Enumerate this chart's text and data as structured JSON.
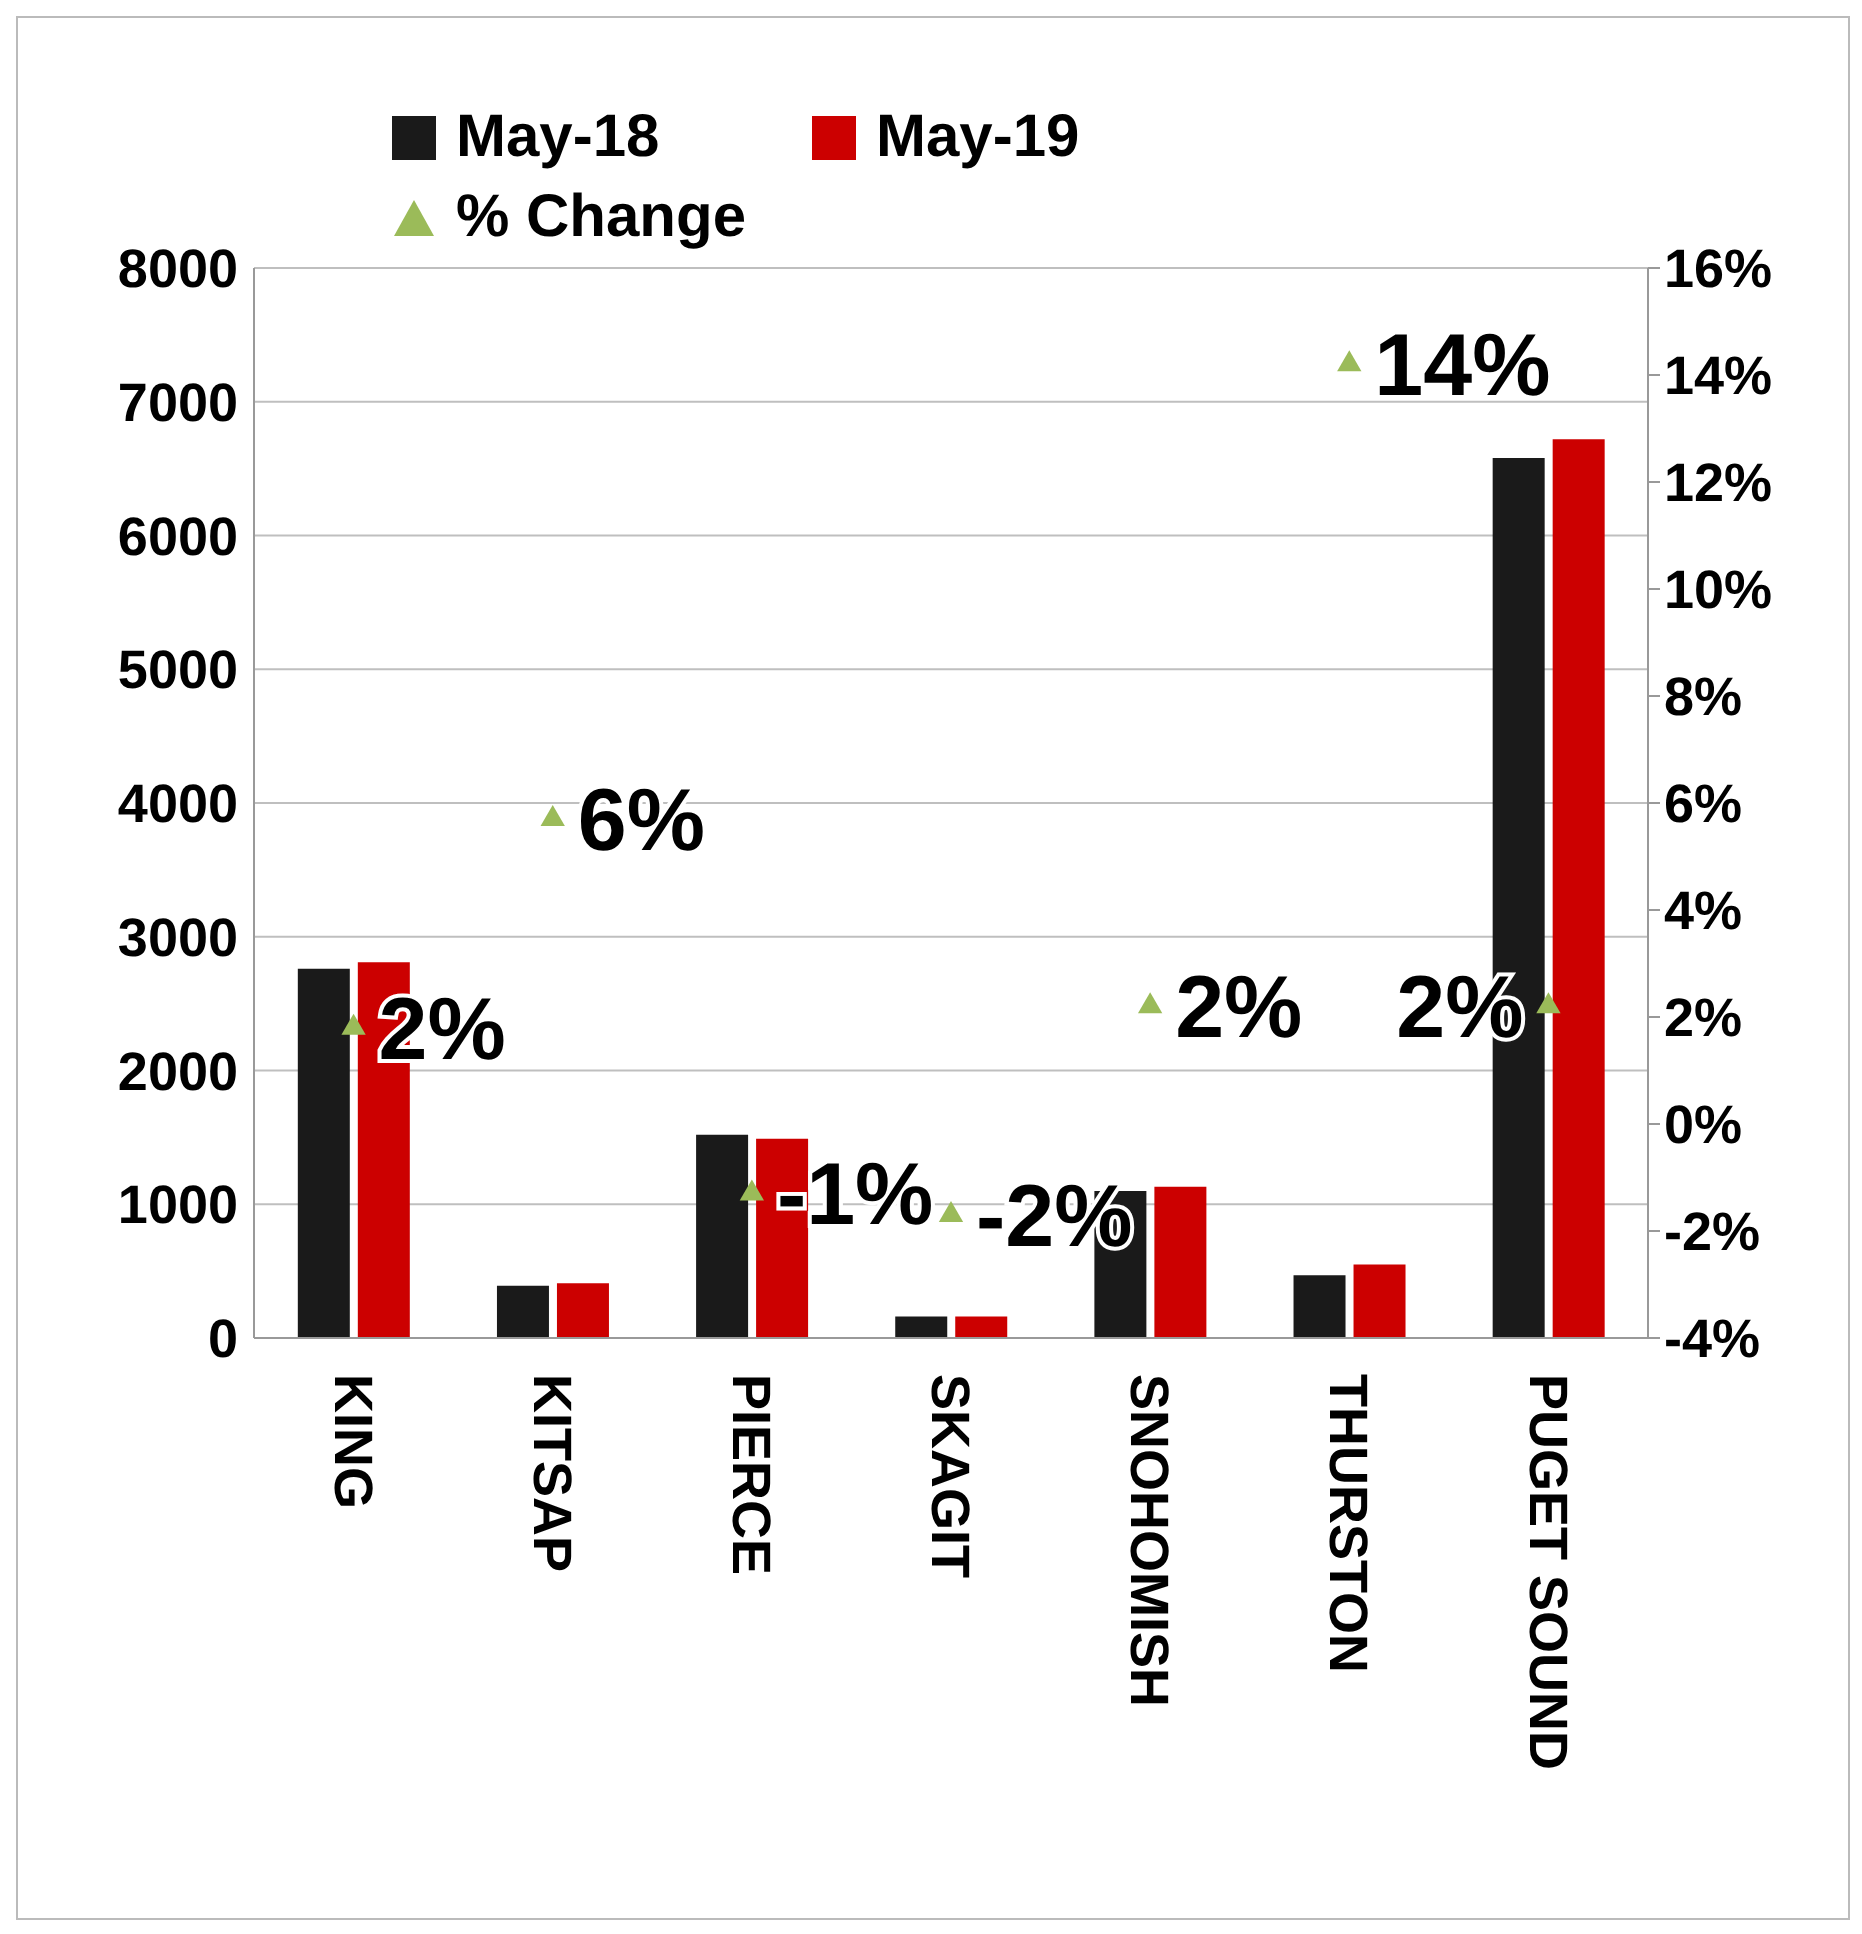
{
  "chart_data": {
    "type": "bar",
    "categories": [
      "KING",
      "KITSAP",
      "PIERCE",
      "SKAGIT",
      "SNOHOMISH",
      "THURSTON",
      "PUGET SOUND"
    ],
    "series": [
      {
        "name": "May-18",
        "color": "#1a1a1a",
        "values": [
          2760,
          390,
          1520,
          160,
          1100,
          470,
          6580
        ]
      },
      {
        "name": "May-19",
        "color": "#cc0000",
        "values": [
          2810,
          410,
          1490,
          160,
          1130,
          550,
          6720
        ]
      },
      {
        "name": "% Change",
        "type": "scatter",
        "axis": "y2",
        "color": "#9bbb59",
        "marker": "triangle",
        "values": [
          1.8,
          5.7,
          -1.3,
          -1.7,
          2.2,
          14.2,
          2.2
        ],
        "value_labels": [
          "2%",
          "6%",
          "-1%",
          "-2%",
          "2%",
          "14%",
          "2%"
        ]
      }
    ],
    "ylim": [
      0,
      8000
    ],
    "yticks": [
      0,
      1000,
      2000,
      3000,
      4000,
      5000,
      6000,
      7000,
      8000
    ],
    "y2lim": [
      -4,
      16
    ],
    "y2ticks": [
      {
        "value": -4,
        "label": "-4%"
      },
      {
        "value": -2,
        "label": "-2%"
      },
      {
        "value": 0,
        "label": "0%"
      },
      {
        "value": 2,
        "label": "2%"
      },
      {
        "value": 4,
        "label": "4%"
      },
      {
        "value": 6,
        "label": "6%"
      },
      {
        "value": 8,
        "label": "8%"
      },
      {
        "value": 10,
        "label": "10%"
      },
      {
        "value": 12,
        "label": "12%"
      },
      {
        "value": 14,
        "label": "14%"
      },
      {
        "value": 16,
        "label": "16%"
      }
    ],
    "grid": "y",
    "legend": "top left"
  }
}
